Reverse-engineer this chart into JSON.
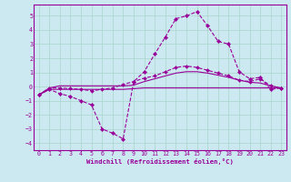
{
  "title": "",
  "xlabel": "Windchill (Refroidissement éolien,°C)",
  "ylabel": "",
  "background_color": "#cce8f0",
  "grid_color": "#aad4cc",
  "line_color": "#990099",
  "xlim": [
    -0.5,
    23.5
  ],
  "ylim": [
    -4.5,
    5.8
  ],
  "yticks": [
    -4,
    -3,
    -2,
    -1,
    0,
    1,
    2,
    3,
    4,
    5
  ],
  "xticks": [
    0,
    1,
    2,
    3,
    4,
    5,
    6,
    7,
    8,
    9,
    10,
    11,
    12,
    13,
    14,
    15,
    16,
    17,
    18,
    19,
    20,
    21,
    22,
    23
  ],
  "series1_x": [
    0,
    1,
    2,
    3,
    4,
    5,
    6,
    7,
    8,
    9,
    10,
    11,
    12,
    13,
    14,
    15,
    16,
    17,
    18,
    19,
    20,
    21,
    22,
    23
  ],
  "series1_y": [
    -0.6,
    -0.2,
    -0.2,
    -0.2,
    -0.2,
    -0.2,
    -0.2,
    -0.2,
    -0.2,
    -0.15,
    -0.1,
    -0.1,
    -0.1,
    -0.1,
    -0.1,
    -0.1,
    -0.1,
    -0.1,
    -0.1,
    -0.1,
    -0.1,
    -0.1,
    -0.1,
    -0.1
  ],
  "series2_x": [
    0,
    1,
    2,
    3,
    4,
    5,
    6,
    7,
    8,
    9,
    10,
    11,
    12,
    13,
    14,
    15,
    16,
    17,
    18,
    19,
    20,
    21,
    22,
    23
  ],
  "series2_y": [
    -0.6,
    -0.1,
    0.05,
    0.05,
    0.05,
    0.05,
    0.05,
    0.05,
    0.05,
    0.1,
    0.35,
    0.55,
    0.75,
    0.95,
    1.05,
    1.05,
    0.95,
    0.8,
    0.65,
    0.45,
    0.3,
    0.25,
    0.05,
    -0.1
  ],
  "series3_x": [
    0,
    1,
    2,
    3,
    4,
    5,
    6,
    7,
    8,
    9,
    10,
    11,
    12,
    13,
    14,
    15,
    16,
    17,
    18,
    19,
    20,
    21,
    22,
    23
  ],
  "series3_y": [
    -0.6,
    -0.1,
    -0.1,
    -0.15,
    -0.2,
    -0.3,
    -0.2,
    -0.1,
    0.15,
    0.35,
    0.6,
    0.75,
    1.05,
    1.35,
    1.45,
    1.35,
    1.15,
    0.95,
    0.75,
    0.45,
    0.35,
    0.55,
    0.05,
    -0.15
  ],
  "series4_x": [
    0,
    1,
    2,
    3,
    4,
    5,
    6,
    7,
    8,
    9,
    10,
    11,
    12,
    13,
    14,
    15,
    16,
    17,
    18,
    19,
    20,
    21,
    22,
    23
  ],
  "series4_y": [
    -0.6,
    -0.2,
    -0.5,
    -0.7,
    -1.0,
    -1.3,
    -3.0,
    -3.3,
    -3.7,
    0.35,
    1.05,
    2.3,
    3.5,
    4.8,
    5.0,
    5.3,
    4.3,
    3.2,
    3.0,
    1.05,
    0.55,
    0.65,
    -0.2,
    -0.1
  ]
}
